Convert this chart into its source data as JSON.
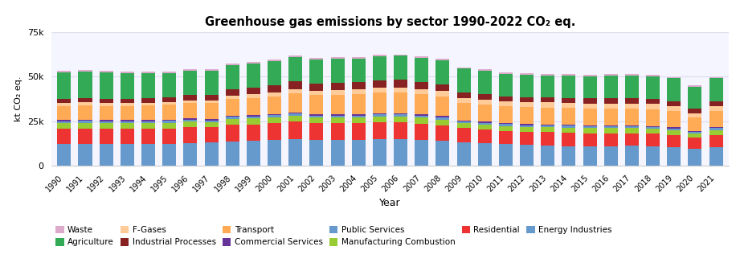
{
  "title": "Greenhouse gas emissions by sector 1990-2022 CO₂ eq.",
  "xlabel": "Year",
  "ylabel": "kt CO₂ eq.",
  "years": [
    1990,
    1991,
    1992,
    1993,
    1994,
    1995,
    1996,
    1997,
    1998,
    1999,
    2000,
    2001,
    2002,
    2003,
    2004,
    2005,
    2006,
    2007,
    2008,
    2009,
    2010,
    2011,
    2012,
    2013,
    2014,
    2015,
    2016,
    2017,
    2018,
    2019,
    2020,
    2021
  ],
  "stack_order": [
    "Energy Industries",
    "Residential",
    "Manufacturing Combustion",
    "Public Services",
    "Commercial Services",
    "Transport",
    "F-Gases",
    "Industrial Processes",
    "Agriculture",
    "Waste"
  ],
  "colors": {
    "Energy Industries": "#6699CC",
    "Residential": "#EE3333",
    "Manufacturing Combustion": "#99CC33",
    "Public Services": "#6699CC",
    "Commercial Services": "#663399",
    "Transport": "#FFAA55",
    "F-Gases": "#FFCC99",
    "Industrial Processes": "#882222",
    "Agriculture": "#33AA55",
    "Waste": "#DDAACC"
  },
  "sector_data": {
    "Energy Industries": [
      12000,
      12200,
      12000,
      12000,
      12000,
      12200,
      12500,
      13000,
      13500,
      14000,
      14500,
      15000,
      14500,
      14500,
      14500,
      15000,
      15000,
      14500,
      14000,
      13000,
      12500,
      12000,
      11500,
      11000,
      10800,
      10800,
      10800,
      11000,
      10800,
      10500,
      9500,
      10500
    ],
    "Residential": [
      8500,
      8600,
      8500,
      8500,
      8500,
      8700,
      9200,
      8400,
      9500,
      9000,
      9200,
      9800,
      9200,
      9200,
      9200,
      9200,
      9200,
      9000,
      8700,
      8000,
      7700,
      7400,
      7400,
      7700,
      7700,
      7400,
      7400,
      7200,
      7000,
      6700,
      6400,
      6700
    ],
    "Manufacturing Combustion": [
      3200,
      3200,
      3200,
      3200,
      3200,
      3000,
      3000,
      2800,
      3200,
      3400,
      3400,
      3200,
      3200,
      3200,
      3200,
      3400,
      3400,
      3400,
      3200,
      2800,
      2800,
      2800,
      2800,
      2800,
      2800,
      2800,
      2800,
      2800,
      2800,
      2600,
      2200,
      2800
    ],
    "Public Services": [
      1200,
      1200,
      1200,
      1200,
      1200,
      1200,
      1200,
      1200,
      1200,
      1200,
      1200,
      1200,
      1200,
      1200,
      1200,
      1200,
      1200,
      1200,
      1200,
      1000,
      1000,
      1000,
      1000,
      1000,
      1000,
      1000,
      1000,
      1000,
      1000,
      1000,
      800,
      1000
    ],
    "Commercial Services": [
      600,
      600,
      600,
      600,
      600,
      600,
      600,
      600,
      700,
      700,
      700,
      700,
      700,
      700,
      700,
      700,
      700,
      700,
      700,
      600,
      600,
      600,
      600,
      600,
      600,
      600,
      600,
      600,
      600,
      600,
      500,
      600
    ],
    "Transport": [
      8000,
      8200,
      8000,
      8000,
      8200,
      8500,
      8500,
      9000,
      9500,
      9800,
      10000,
      10500,
      10800,
      11000,
      11200,
      11500,
      11500,
      11200,
      11000,
      9800,
      9800,
      9500,
      9500,
      9500,
      9500,
      9500,
      9500,
      9500,
      9500,
      9200,
      7500,
      9000
    ],
    "F-Gases": [
      1500,
      1500,
      1500,
      1500,
      1600,
      1600,
      1600,
      1700,
      1800,
      2000,
      2200,
      2400,
      2500,
      2600,
      2700,
      2800,
      2900,
      3000,
      3000,
      2800,
      2800,
      2800,
      2800,
      2800,
      2800,
      2800,
      2800,
      2800,
      2800,
      2600,
      2400,
      2600
    ],
    "Industrial Processes": [
      2500,
      2500,
      2500,
      2500,
      2500,
      2500,
      3000,
      3200,
      3500,
      3800,
      4000,
      4500,
      4000,
      4000,
      4000,
      4200,
      4200,
      4000,
      3800,
      3200,
      3000,
      2800,
      2800,
      2800,
      2800,
      2800,
      2800,
      2800,
      2800,
      2800,
      2600,
      2800
    ],
    "Agriculture": [
      15000,
      14800,
      14800,
      14500,
      14000,
      13800,
      13800,
      13500,
      13500,
      13500,
      13500,
      13500,
      13500,
      13500,
      13500,
      13500,
      13500,
      13500,
      13500,
      13200,
      13000,
      12500,
      12500,
      12500,
      12500,
      12500,
      13000,
      13000,
      13000,
      13000,
      12500,
      13000
    ],
    "Waste": [
      800,
      800,
      800,
      800,
      800,
      800,
      800,
      800,
      800,
      800,
      800,
      800,
      800,
      800,
      800,
      800,
      800,
      800,
      800,
      800,
      800,
      800,
      800,
      800,
      800,
      800,
      800,
      800,
      800,
      800,
      800,
      800
    ]
  },
  "ylim": [
    0,
    75000
  ],
  "yticks": [
    0,
    25000,
    50000,
    75000
  ],
  "ytick_labels": [
    "0",
    "25k",
    "50k",
    "75k"
  ],
  "legend_order": [
    "Waste",
    "Agriculture",
    "F-Gases",
    "Industrial Processes",
    "Transport",
    "Commercial Services",
    "Public Services",
    "Manufacturing Combustion",
    "Residential",
    "Energy Industries"
  ],
  "bg_color": "#ffffff",
  "plot_bg": "#f5f5ff",
  "grid_color": "#ddddee"
}
